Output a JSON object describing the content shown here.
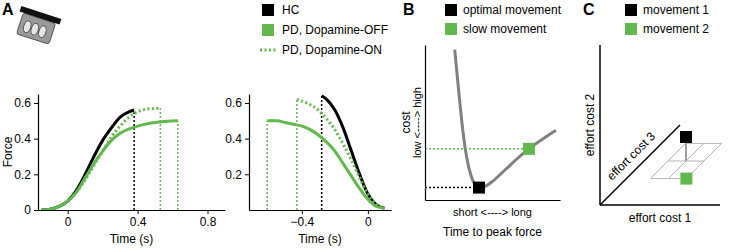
{
  "chart_data": [
    {
      "title": "A",
      "type": "line",
      "x_label": "Time (s)",
      "y_label": "Force",
      "xlim": [
        -0.17,
        0.9
      ],
      "ylim": [
        0,
        0.65
      ],
      "xticks": [
        0,
        0.4,
        0.8
      ],
      "yticks": [
        0,
        0.2,
        0.4,
        0.6
      ],
      "series": [
        {
          "name": "HC",
          "color": "#000000",
          "line_style": "solid",
          "x": [
            -0.15,
            -0.1,
            -0.05,
            0,
            0.05,
            0.1,
            0.15,
            0.2,
            0.25,
            0.3,
            0.35,
            0.38
          ],
          "values": [
            0,
            0.005,
            0.02,
            0.05,
            0.11,
            0.2,
            0.3,
            0.39,
            0.46,
            0.52,
            0.55,
            0.56
          ],
          "peak_time": 0.38
        },
        {
          "name": "PD, Dopamine-OFF",
          "color": "#62b84c",
          "line_style": "solid",
          "x": [
            -0.15,
            -0.1,
            -0.05,
            0,
            0.05,
            0.1,
            0.15,
            0.2,
            0.25,
            0.3,
            0.4,
            0.5,
            0.63
          ],
          "values": [
            0,
            0.005,
            0.02,
            0.05,
            0.1,
            0.18,
            0.26,
            0.33,
            0.39,
            0.43,
            0.47,
            0.49,
            0.5
          ],
          "peak_time": 0.63
        },
        {
          "name": "PD, Dopamine-ON",
          "color": "#62b84c",
          "line_style": "dotted",
          "x": [
            -0.15,
            -0.1,
            -0.05,
            0,
            0.05,
            0.1,
            0.15,
            0.2,
            0.25,
            0.3,
            0.35,
            0.4,
            0.45,
            0.53
          ],
          "values": [
            0,
            0.005,
            0.02,
            0.05,
            0.1,
            0.17,
            0.25,
            0.33,
            0.41,
            0.47,
            0.52,
            0.55,
            0.565,
            0.57
          ],
          "peak_time": 0.53
        }
      ]
    },
    {
      "type": "line",
      "x_label": "Time (s)",
      "xlim": [
        -0.72,
        0.14
      ],
      "ylim": [
        0,
        0.65
      ],
      "xticks": [
        {
          "value": -0.4,
          "label": "−0.4"
        },
        0
      ],
      "yticks": [
        0.2,
        0.4,
        0.6
      ],
      "series": [
        {
          "color": "#000000",
          "line_style": "solid",
          "x": [
            -0.28,
            -0.25,
            -0.2,
            -0.15,
            -0.1,
            -0.05,
            0,
            0.05,
            0.1
          ],
          "values": [
            0.64,
            0.62,
            0.56,
            0.46,
            0.33,
            0.2,
            0.09,
            0.03,
            0.01
          ],
          "peak_time": -0.28
        },
        {
          "color": "#62b84c",
          "line_style": "solid",
          "x": [
            -0.61,
            -0.55,
            -0.5,
            -0.45,
            -0.4,
            -0.35,
            -0.3,
            -0.25,
            -0.2,
            -0.15,
            -0.1,
            -0.05,
            0,
            0.05,
            0.1
          ],
          "values": [
            0.5,
            0.5,
            0.49,
            0.48,
            0.47,
            0.45,
            0.42,
            0.38,
            0.33,
            0.26,
            0.19,
            0.12,
            0.06,
            0.02,
            0.01
          ],
          "peak_time": -0.61
        },
        {
          "color": "#62b84c",
          "line_style": "dotted",
          "x": [
            -0.43,
            -0.4,
            -0.35,
            -0.3,
            -0.25,
            -0.2,
            -0.15,
            -0.1,
            -0.05,
            0,
            0.05,
            0.1
          ],
          "values": [
            0.62,
            0.61,
            0.59,
            0.56,
            0.51,
            0.45,
            0.37,
            0.28,
            0.18,
            0.09,
            0.03,
            0.01
          ],
          "peak_time": -0.43
        }
      ]
    },
    {
      "title": "B",
      "type": "line",
      "x_label": "Time to peak force",
      "y_label": "cost",
      "annotations": [
        {
          "text": "low <----> high",
          "axis": "y"
        },
        {
          "text": "short <----> long",
          "axis": "x"
        }
      ],
      "xlim": [
        0,
        1
      ],
      "ylim": [
        0,
        1
      ],
      "tick_labels": false,
      "series": [
        {
          "color": "#808080",
          "line_style": "solid",
          "x": [
            0.22,
            0.25,
            0.28,
            0.31,
            0.34,
            0.37,
            0.4,
            0.45,
            0.5,
            0.6,
            0.7,
            0.8,
            0.9,
            0.97
          ],
          "values": [
            0.97,
            0.7,
            0.45,
            0.27,
            0.16,
            0.1,
            0.08,
            0.09,
            0.12,
            0.2,
            0.28,
            0.35,
            0.41,
            0.45
          ]
        },
        {
          "name": "optimal movement",
          "type": "scatter",
          "marker": "square",
          "color": "#000000",
          "x": [
            0.4
          ],
          "values": [
            0.08
          ]
        },
        {
          "name": "slow movement",
          "type": "scatter",
          "marker": "square",
          "color": "#62b84c",
          "x": [
            0.77
          ],
          "values": [
            0.33
          ]
        }
      ]
    },
    {
      "title": "C",
      "type": "scatter",
      "x_label": "effort cost 1",
      "y_label": "effort cost 2",
      "z_label": "effort cost 3",
      "xlim": [
        0,
        1
      ],
      "ylim": [
        0,
        1
      ],
      "zlim": [
        0,
        1
      ],
      "xticks": [
        0.2,
        0.35,
        0.5
      ],
      "zticks": [
        0.33,
        0.55,
        0.77
      ],
      "grid": true,
      "tick_labels": false,
      "series": [
        {
          "name": "movement 1",
          "marker": "square",
          "color": "#000000",
          "x": [
            0.35
          ],
          "values": [
            0.15
          ],
          "z": [
            0.55
          ]
        },
        {
          "name": "movement 2",
          "marker": "square",
          "color": "#62b84c",
          "x": [
            0.5
          ],
          "values": [
            0
          ],
          "z": [
            0.33
          ]
        }
      ]
    }
  ]
}
